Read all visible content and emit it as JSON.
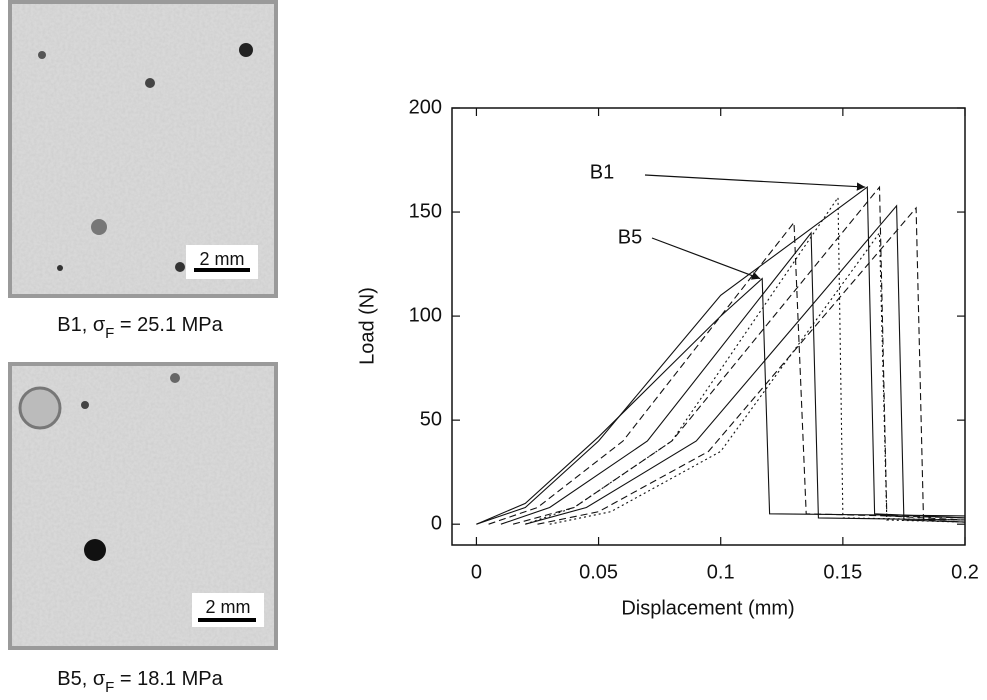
{
  "panels": [
    {
      "caption": {
        "prefix": "B1, σ",
        "sub": "F",
        "suffix": " = 25.1 MPa"
      },
      "scale_bar": "2 mm"
    },
    {
      "caption": {
        "prefix": "B5, σ",
        "sub": "F",
        "suffix": " = 18.1 MPa"
      },
      "scale_bar": "2 mm"
    }
  ],
  "chart_data": {
    "type": "line",
    "xlabel": "Displacement (mm)",
    "ylabel": "Load (N)",
    "xlim": [
      -0.01,
      0.2
    ],
    "ylim": [
      -10,
      200
    ],
    "xticks": [
      0,
      0.05,
      0.1,
      0.15,
      0.2
    ],
    "yticks": [
      0,
      50,
      100,
      150,
      200
    ],
    "annotations": [
      "B1",
      "B5"
    ],
    "series": [
      {
        "color": "#111",
        "dash": "solid",
        "x": [
          0,
          0.02,
          0.05,
          0.1,
          0.16,
          0.163,
          0.2
        ],
        "values": [
          0,
          8,
          40,
          110,
          162,
          5,
          3
        ]
      },
      {
        "color": "#111",
        "dash": "solid",
        "x": [
          0,
          0.02,
          0.05,
          0.1,
          0.117,
          0.12,
          0.2
        ],
        "values": [
          0,
          10,
          42,
          100,
          118,
          5,
          4
        ]
      },
      {
        "color": "#111",
        "dash": "dashed",
        "x": [
          0.005,
          0.025,
          0.06,
          0.13,
          0.135,
          0.2
        ],
        "values": [
          0,
          8,
          40,
          145,
          5,
          3
        ]
      },
      {
        "color": "#111",
        "dash": "solid",
        "x": [
          0.01,
          0.03,
          0.07,
          0.137,
          0.14,
          0.2
        ],
        "values": [
          0,
          8,
          40,
          140,
          3,
          2
        ]
      },
      {
        "color": "#111",
        "dash": "dotted",
        "x": [
          0.02,
          0.04,
          0.08,
          0.148,
          0.15,
          0.2
        ],
        "values": [
          0,
          8,
          40,
          157,
          3,
          2
        ]
      },
      {
        "color": "#111",
        "dash": "dashed",
        "x": [
          0.015,
          0.04,
          0.08,
          0.165,
          0.168,
          0.2
        ],
        "values": [
          0,
          8,
          40,
          162,
          4,
          2
        ]
      },
      {
        "color": "#111",
        "dash": "solid",
        "x": [
          0.02,
          0.045,
          0.09,
          0.172,
          0.175,
          0.2
        ],
        "values": [
          0,
          8,
          40,
          153,
          2,
          1
        ]
      },
      {
        "color": "#111",
        "dash": "dashed",
        "x": [
          0.025,
          0.05,
          0.095,
          0.18,
          0.183,
          0.2
        ],
        "values": [
          0,
          6,
          35,
          152,
          2,
          1
        ]
      },
      {
        "color": "#111",
        "dash": "dotted",
        "x": [
          0.03,
          0.055,
          0.1,
          0.165,
          0.168,
          0.2
        ],
        "values": [
          0,
          6,
          35,
          140,
          2,
          1
        ]
      }
    ]
  }
}
